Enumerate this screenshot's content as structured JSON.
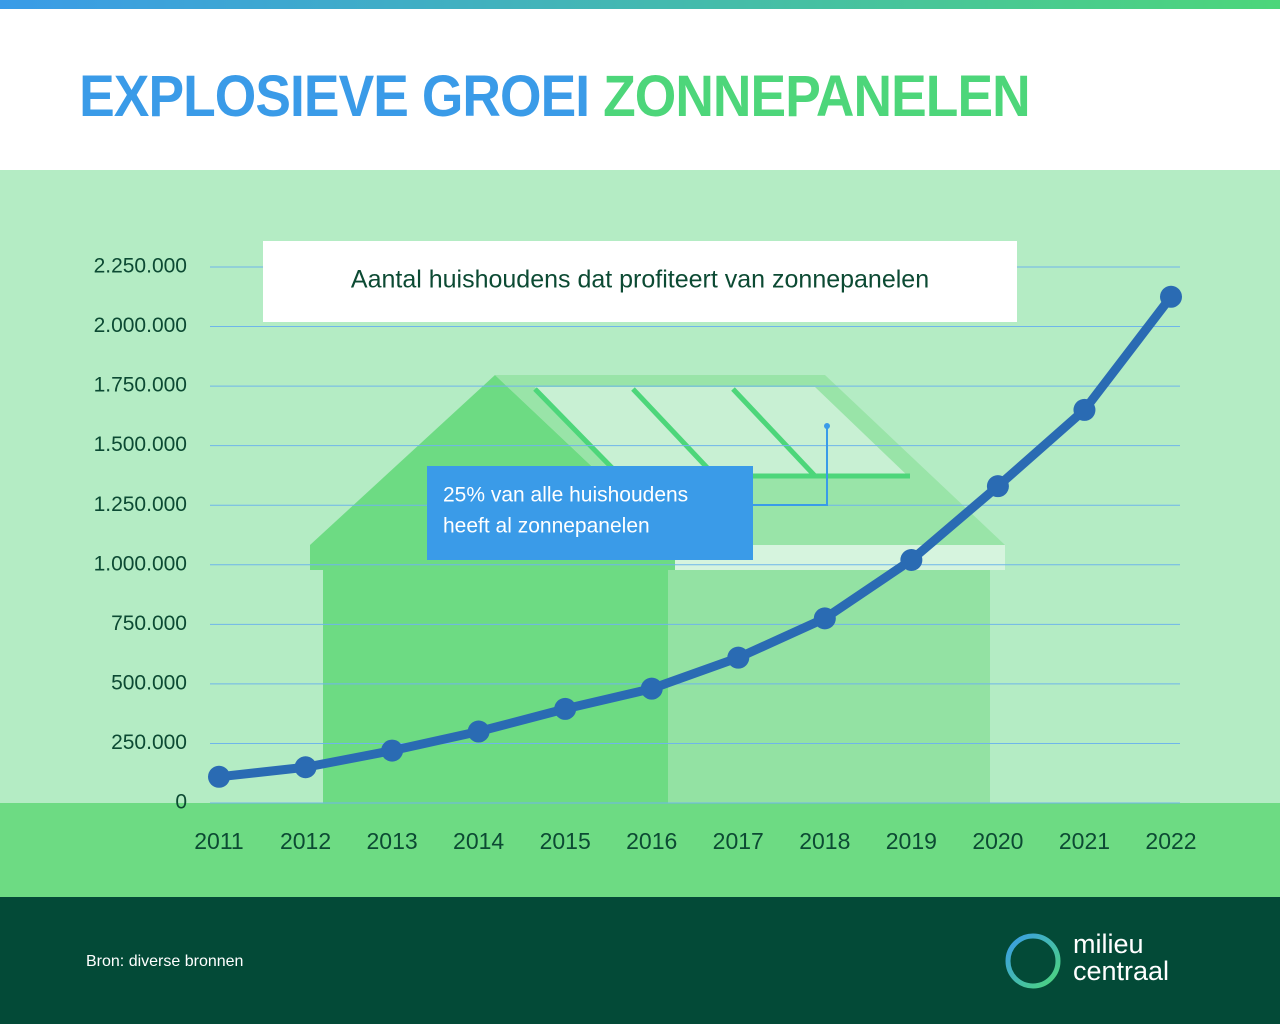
{
  "header": {
    "title_part1": "EXPLOSIEVE GROEI",
    "title_part2": "ZONNEPANELEN"
  },
  "chart_data": {
    "type": "line",
    "title": "Aantal huishoudens dat profiteert van zonnepanelen",
    "annotation": [
      "25% van alle huishoudens",
      "heeft al zonnepanelen"
    ],
    "categories": [
      "2011",
      "2012",
      "2013",
      "2014",
      "2015",
      "2016",
      "2017",
      "2018",
      "2019",
      "2020",
      "2021",
      "2022"
    ],
    "values": [
      110000,
      150000,
      220000,
      300000,
      395000,
      480000,
      610000,
      775000,
      1020000,
      1330000,
      1650000,
      2125000
    ],
    "color": "#2a6bb3",
    "ylim": [
      0,
      2250000
    ],
    "yticks": [
      0,
      {
        "value": 250000,
        "label": "250.000"
      },
      {
        "value": 500000,
        "label": "500.000"
      },
      {
        "value": 750000,
        "label": "750.000"
      },
      {
        "value": 1000000,
        "label": "1.000.000"
      },
      {
        "value": 1250000,
        "label": "1.250.000"
      },
      {
        "value": 1500000,
        "label": "1.500.000"
      },
      {
        "value": 1750000,
        "label": "1.750.000"
      },
      {
        "value": 2000000,
        "label": "2.000.000"
      },
      {
        "value": 2250000,
        "label": "2.250.000"
      }
    ],
    "grid": true
  },
  "footer": {
    "source": "Bron: diverse bronnen",
    "logo": [
      "milieu",
      "centraal"
    ]
  }
}
